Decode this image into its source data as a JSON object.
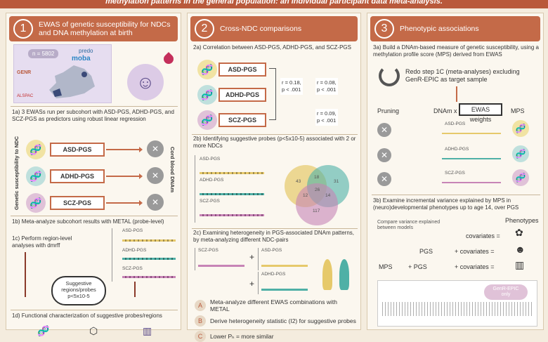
{
  "title_fragment": "methylation patterns in the general population: an individual participant data meta-analysis.",
  "panel1": {
    "number": "1",
    "title": "EWAS of genetic susceptibility for NDCs and DNA methylation at birth",
    "n_label": "n = 5802",
    "cohort_labels": [
      "predo",
      "moba",
      "GENR",
      "ALSPAC"
    ],
    "step_1a": "1a) 3 EWASs run per subcohort with ASD-PGS, ADHD-PGS, and SCZ-PGS as predictors using robust linear regression",
    "left_vertical": "Genetic susceptibility to NDC",
    "right_vertical": "Cord blood DNAm",
    "pgs": [
      "ASD-PGS",
      "ADHD-PGS",
      "SCZ-PGS"
    ],
    "step_1b": "1b) Meta-analyze subcohort results with METAL (probe-level)",
    "step_1c": "1c) Perform region-level analyses with dmrff",
    "plot_labels": [
      "ASD-PGS",
      "ADHD-PGS",
      "SCZ-PGS"
    ],
    "suggestive": "Suggestive regions/probes p<5x10-5",
    "step_1d": "1d) Functional characterization of suggestive probes/regions"
  },
  "panel2": {
    "number": "2",
    "title": "Cross-NDC comparisons",
    "step_2a": "2a) Correlation between ASD-PGS, ADHD-PGS, and SCZ-PGS",
    "pgs": [
      "ASD-PGS",
      "ADHD-PGS",
      "SCZ-PGS"
    ],
    "correlations": [
      {
        "r": "r = 0.18,",
        "p": "p < .001"
      },
      {
        "r": "r = 0.08,",
        "p": "p < .001"
      },
      {
        "r": "r = 0.09,",
        "p": "p < .001"
      }
    ],
    "step_2b": "2b) Identifying suggestive probes (p<5x10-5) associated with 2 or more NDCs",
    "mini_labels": [
      "ASD-PGS",
      "ADHD-PGS",
      "SCZ-PGS"
    ],
    "venn": [
      "43",
      "18",
      "31",
      "117",
      "12",
      "14",
      "26"
    ],
    "step_2c": "2c) Examining heterogeneity in PGS-associated DNAm patterns, by meta-analyzing different NDC-pairs",
    "pairs": [
      "SCZ-PGS",
      "ASD-PGS",
      "ADHD-PGS"
    ],
    "steps": [
      {
        "letter": "A",
        "text": "Meta-analyze different EWAS combinations with METAL"
      },
      {
        "letter": "B",
        "text": "Derive heterogeneity statistic (I2) for suggestive probes"
      },
      {
        "letter": "C",
        "text": "Lower Pₕ = more similar"
      }
    ]
  },
  "panel3": {
    "number": "3",
    "title": "Phenotypic associations",
    "step_3a": "3a) Build a DNAm-based measure of genetic susceptibility, using a methylation profile score (MPS) derived from EWAS",
    "redo": "Redo step 1C (meta-analyses) excluding GenR-EPIC as target sample",
    "flow": {
      "pruning": "Pruning",
      "dnam": "DNAm x",
      "weights": "EWAS weights",
      "mps": "MPS"
    },
    "pgs": [
      "ASD-PGS",
      "ADHD-PGS",
      "SCZ-PGS"
    ],
    "step_3b": "3b) Examine incremental variance explained by MPS in (neuro)developmental phenotypes up to age 14, over PGS",
    "compare": "Compare variance explained between models",
    "phenotypes": "Phenotypes",
    "pgs_word": "PGS",
    "mps_word": "MPS",
    "covariates": "covariates =",
    "plus_cov": "+ covariates =",
    "plus_pgs": "+ PGS",
    "genr": "GenR-EPIC only"
  },
  "colors": {
    "accent": "#c46a48",
    "bg": "#f4ecde",
    "asd": "#f1e3a3",
    "adhd": "#bfe0dd",
    "scz": "#e0c2d8"
  }
}
